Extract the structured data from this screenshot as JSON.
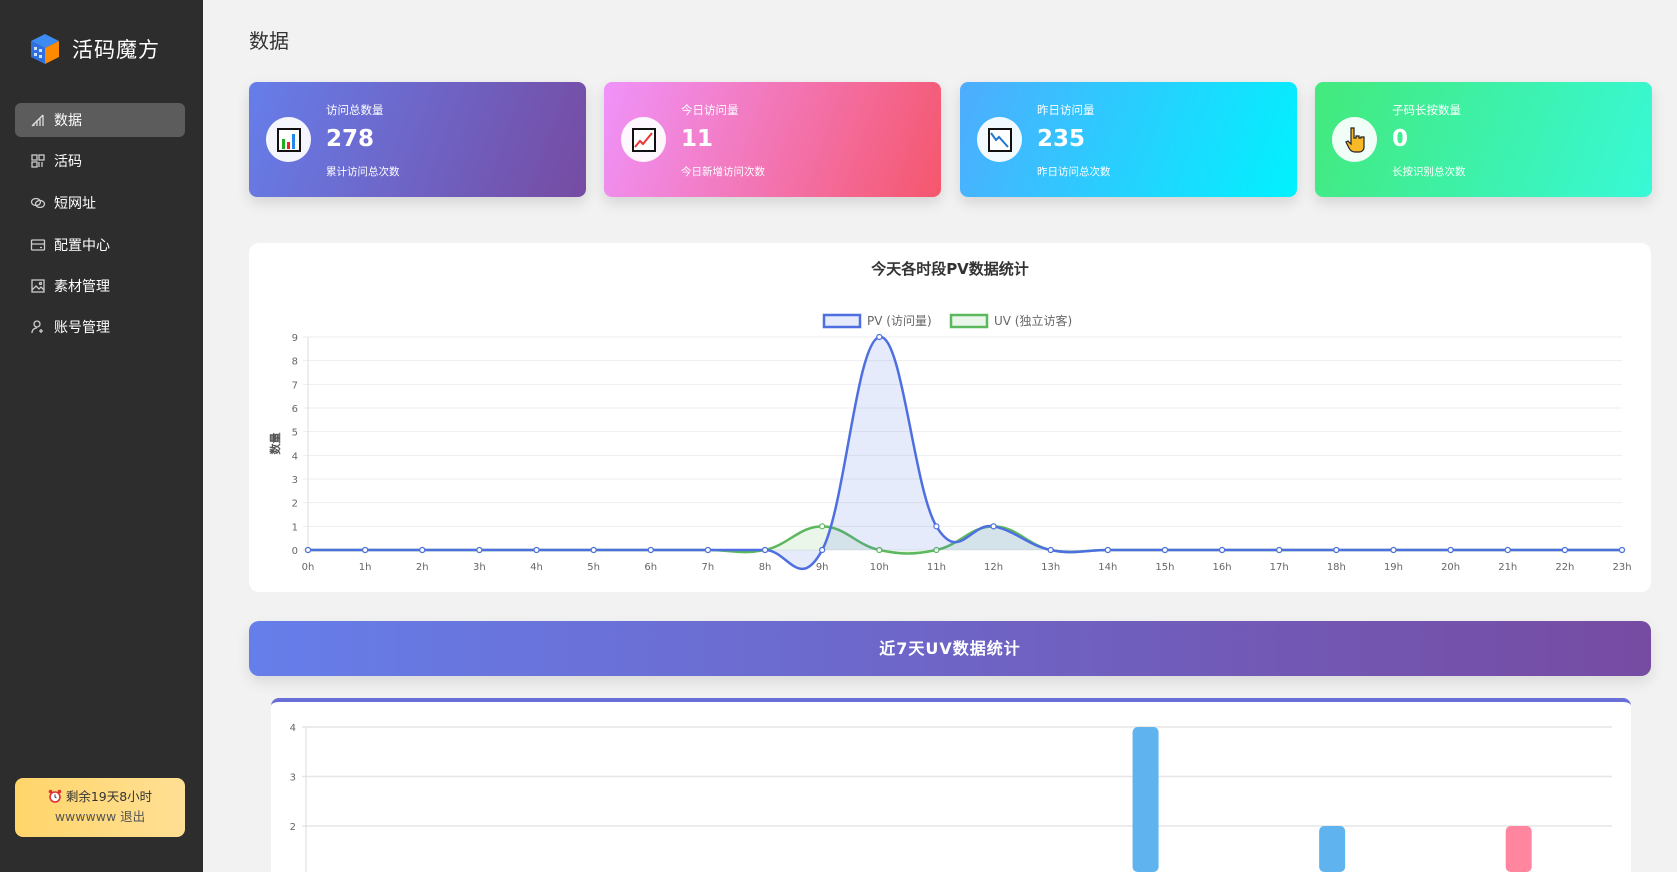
{
  "app": {
    "name": "活码魔方"
  },
  "sidebar": {
    "items": [
      {
        "label": "数据",
        "icon": "bar-chart-icon",
        "active": true
      },
      {
        "label": "活码",
        "icon": "grid-icon"
      },
      {
        "label": "短网址",
        "icon": "link-icon"
      },
      {
        "label": "配置中心",
        "icon": "card-icon"
      },
      {
        "label": "素材管理",
        "icon": "image-icon"
      },
      {
        "label": "账号管理",
        "icon": "user-add-icon"
      }
    ],
    "expire": {
      "text": "剩余19天8小时",
      "user": "wwwwww",
      "logout": "退出"
    }
  },
  "page": {
    "title": "数据"
  },
  "stats": [
    {
      "title": "访问总数量",
      "value": "278",
      "sub": "累计访问总次数",
      "icon": "bar-chart-icon",
      "gradient": [
        "#667eea",
        "#764ba2"
      ]
    },
    {
      "title": "今日访问量",
      "value": "11",
      "sub": "今日新增访问次数",
      "icon": "chart-up-icon",
      "gradient": [
        "#f093fb",
        "#f5576c"
      ]
    },
    {
      "title": "昨日访问量",
      "value": "235",
      "sub": "昨日访问总次数",
      "icon": "chart-down-icon",
      "gradient": [
        "#4facfe",
        "#00f2fe"
      ]
    },
    {
      "title": "子码长按数量",
      "value": "0",
      "sub": "长按识别总次数",
      "icon": "pointing-hand-icon",
      "gradient": [
        "#43e97b",
        "#38f9d7"
      ]
    }
  ],
  "chart_data": [
    {
      "type": "line",
      "title": "今天各时段PV数据统计",
      "ylabel": "数量",
      "ylim": [
        0,
        9
      ],
      "grid": true,
      "legend": "top",
      "categories": [
        "0h",
        "1h",
        "2h",
        "3h",
        "4h",
        "5h",
        "6h",
        "7h",
        "8h",
        "9h",
        "10h",
        "11h",
        "12h",
        "13h",
        "14h",
        "15h",
        "16h",
        "17h",
        "18h",
        "19h",
        "20h",
        "21h",
        "22h",
        "23h"
      ],
      "yticks": [
        "0",
        "1",
        "2",
        "3",
        "4",
        "5",
        "6",
        "7",
        "8",
        "9"
      ],
      "series": [
        {
          "name": "PV (访问量)",
          "color": "#4e6fe0",
          "values": [
            0,
            0,
            0,
            0,
            0,
            0,
            0,
            0,
            0,
            0,
            9,
            1,
            1,
            0,
            0,
            0,
            0,
            0,
            0,
            0,
            0,
            0,
            0,
            0
          ]
        },
        {
          "name": "UV (独立访客)",
          "color": "#5cb85c",
          "values": [
            0,
            0,
            0,
            0,
            0,
            0,
            0,
            0,
            0,
            1,
            0,
            0,
            1,
            0,
            0,
            0,
            0,
            0,
            0,
            0,
            0,
            0,
            0,
            0
          ]
        }
      ]
    },
    {
      "type": "bar",
      "title": "近7天UV数据统计",
      "ylim": [
        0,
        4
      ],
      "grid": true,
      "yticks": [
        "2",
        "3",
        "4"
      ],
      "values": [
        0,
        0,
        0,
        0,
        4,
        2,
        2
      ],
      "colors": [
        "#5fb4f0",
        "#5fb4f0",
        "#5fb4f0",
        "#5fb4f0",
        "#5fb4f0",
        "#5fb4f0",
        "#ff869e"
      ]
    }
  ]
}
